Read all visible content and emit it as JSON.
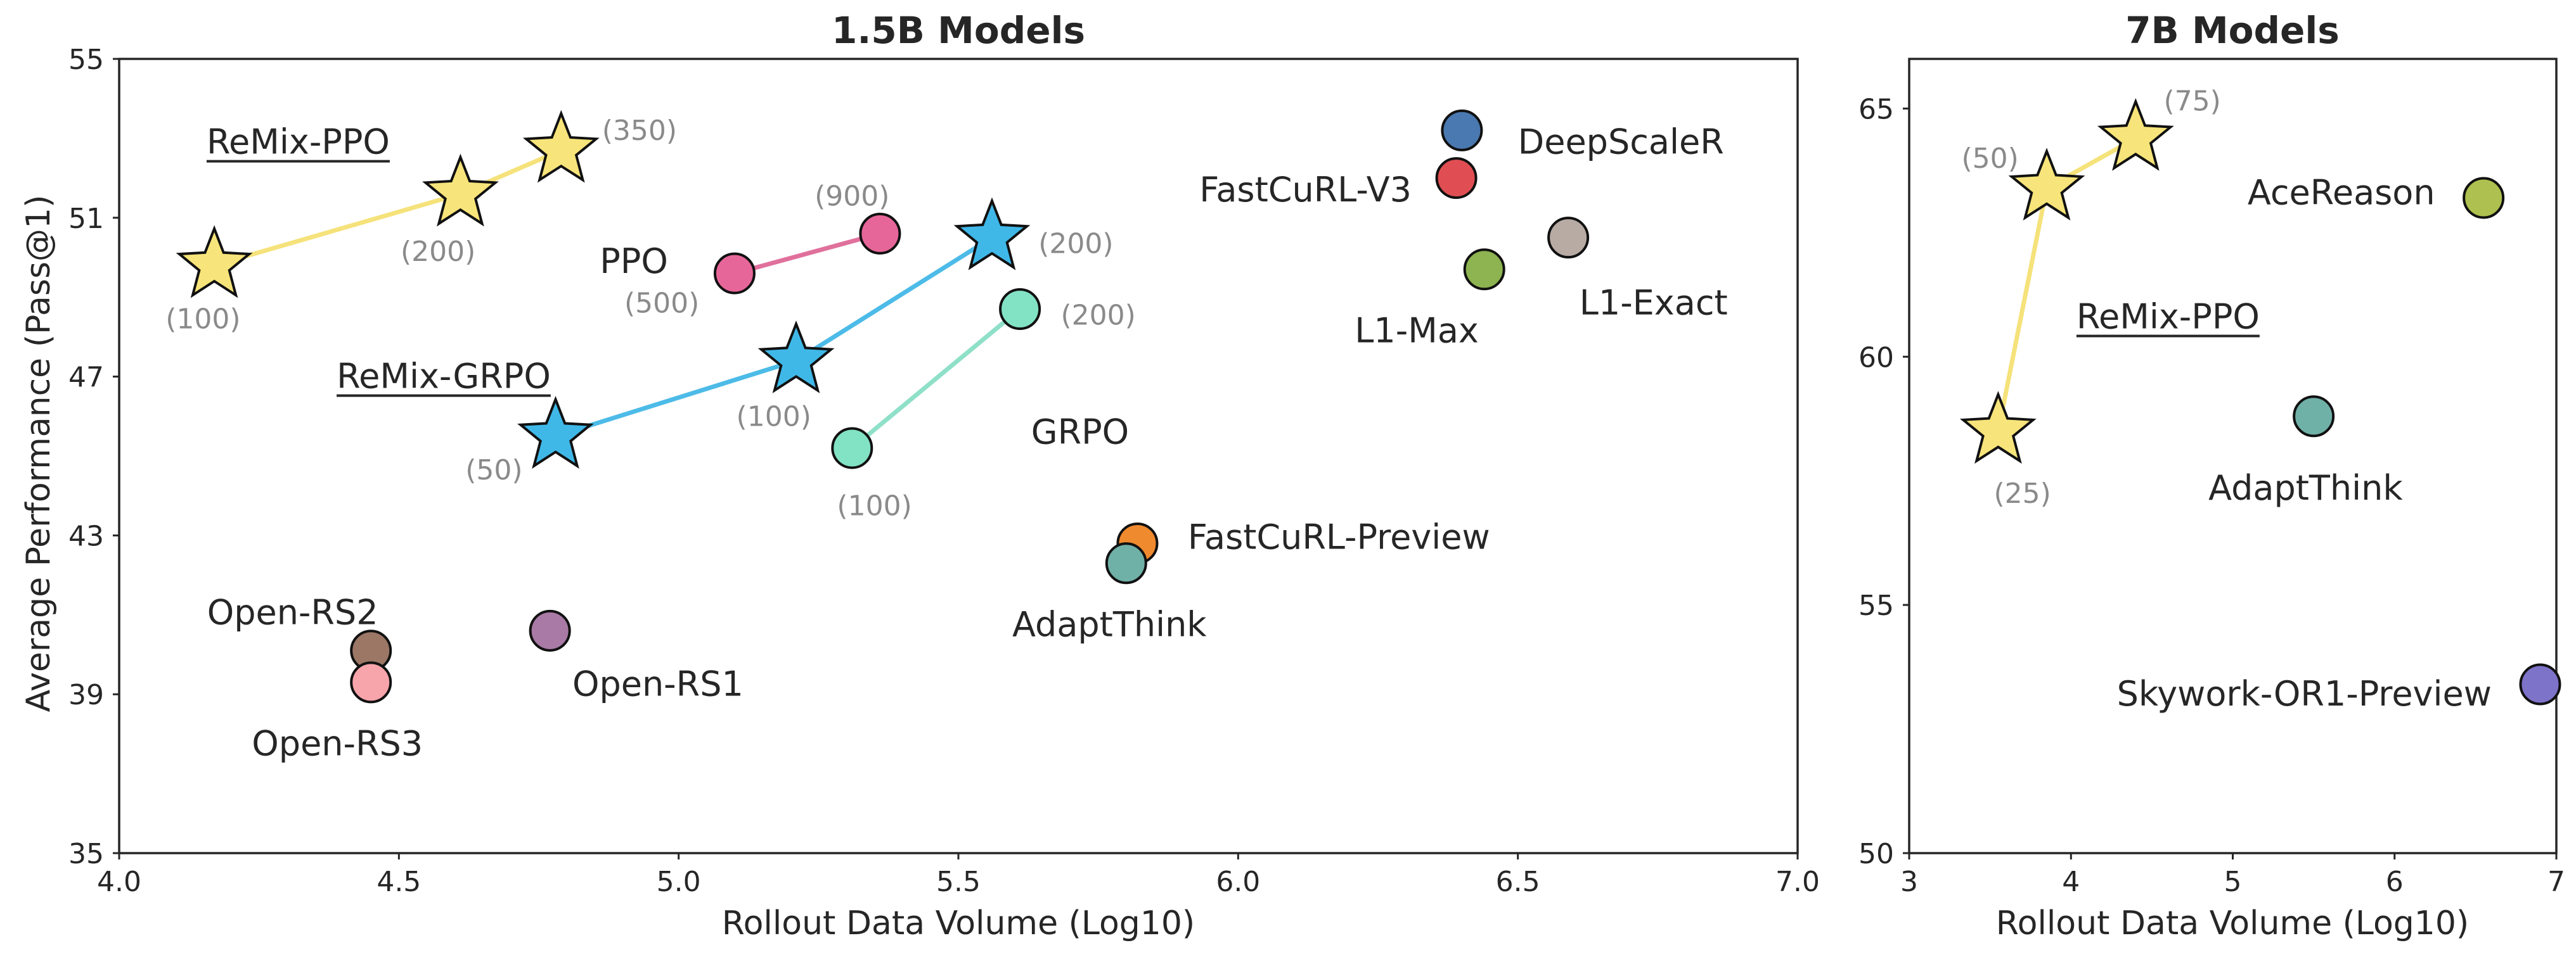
{
  "chart_data": [
    {
      "type": "scatter",
      "title": "1.5B Models",
      "xlabel": "Rollout Data Volume (Log10)",
      "ylabel": "Average Performance (Pass@1)",
      "xlim": [
        4.0,
        7.0
      ],
      "ylim": [
        35,
        55
      ],
      "xticks": [
        "4.0",
        "4.5",
        "5.0",
        "5.5",
        "6.0",
        "6.5",
        "7.0"
      ],
      "xtick_values": [
        4.0,
        4.5,
        5.0,
        5.5,
        6.0,
        6.5,
        7.0
      ],
      "yticks": [
        "35",
        "39",
        "43",
        "47",
        "51",
        "55"
      ],
      "ytick_values": [
        35,
        39,
        43,
        47,
        51,
        55
      ],
      "grid": false,
      "lines": [
        {
          "name": "ReMix-PPO",
          "color": "#f5e27a",
          "points": [
            [
              4.17,
              49.8
            ],
            [
              4.61,
              51.6
            ],
            [
              4.79,
              52.7
            ]
          ]
        },
        {
          "name": "PPO",
          "color": "#e0709c",
          "points": [
            [
              5.1,
              49.6
            ],
            [
              5.36,
              50.6
            ]
          ]
        },
        {
          "name": "ReMix-GRPO",
          "color": "#4dbbe8",
          "points": [
            [
              4.78,
              45.5
            ],
            [
              5.21,
              47.4
            ],
            [
              5.56,
              50.5
            ]
          ]
        },
        {
          "name": "GRPO",
          "color": "#8fe0c8",
          "points": [
            [
              5.31,
              45.2
            ],
            [
              5.61,
              48.7
            ]
          ]
        }
      ],
      "series_labels": [
        {
          "text": "ReMix-PPO",
          "x": 4.32,
          "y": 52.9,
          "underline": true,
          "anchor": "middle"
        },
        {
          "text": "ReMix-GRPO",
          "x": 4.58,
          "y": 47.0,
          "underline": true,
          "anchor": "middle"
        },
        {
          "text": "PPO",
          "x": 4.92,
          "y": 49.9,
          "underline": false,
          "anchor": "middle"
        },
        {
          "text": "GRPO",
          "x": 5.63,
          "y": 45.6,
          "underline": false,
          "anchor": "start"
        }
      ],
      "points": [
        {
          "name": "ReMix-PPO",
          "marker": "star",
          "color": "#f7e47a",
          "x": 4.17,
          "y": 49.8,
          "note": "(100)",
          "note_dx": -0.02,
          "note_dy": -1.35
        },
        {
          "name": "ReMix-PPO",
          "marker": "star",
          "color": "#f7e47a",
          "x": 4.61,
          "y": 51.6,
          "note": "(200)",
          "note_dx": -0.04,
          "note_dy": -1.45
        },
        {
          "name": "ReMix-PPO",
          "marker": "star",
          "color": "#f7e47a",
          "x": 4.79,
          "y": 52.7,
          "note": "(350)",
          "note_dx": 0.14,
          "note_dy": 0.5
        },
        {
          "name": "PPO",
          "marker": "circle",
          "color": "#e7669a",
          "x": 5.1,
          "y": 49.6,
          "note": "(500)",
          "note_dx": -0.13,
          "note_dy": -0.75
        },
        {
          "name": "PPO",
          "marker": "circle",
          "color": "#e7669a",
          "x": 5.36,
          "y": 50.6,
          "note": "(900)",
          "note_dx": -0.05,
          "note_dy": 0.95
        },
        {
          "name": "ReMix-GRPO",
          "marker": "star",
          "color": "#3fb8e8",
          "x": 4.78,
          "y": 45.5,
          "note": "(50)",
          "note_dx": -0.11,
          "note_dy": -0.85
        },
        {
          "name": "ReMix-GRPO",
          "marker": "star",
          "color": "#3fb8e8",
          "x": 5.21,
          "y": 47.4,
          "note": "(100)",
          "note_dx": -0.04,
          "note_dy": -1.4
        },
        {
          "name": "ReMix-GRPO",
          "marker": "star",
          "color": "#3fb8e8",
          "x": 5.56,
          "y": 50.5,
          "note": "(200)",
          "note_dx": 0.15,
          "note_dy": -0.15
        },
        {
          "name": "GRPO",
          "marker": "circle",
          "color": "#82e2c4",
          "x": 5.31,
          "y": 45.2,
          "note": "(100)",
          "note_dx": 0.04,
          "note_dy": -1.45
        },
        {
          "name": "GRPO",
          "marker": "circle",
          "color": "#82e2c4",
          "x": 5.61,
          "y": 48.7,
          "note": "(200)",
          "note_dx": 0.14,
          "note_dy": -0.15
        },
        {
          "name": "DeepScaleR",
          "marker": "circle",
          "color": "#4a78b0",
          "x": 6.4,
          "y": 53.2,
          "label": "DeepScaleR",
          "label_dx": 0.1,
          "label_dy": -0.3,
          "anchor": "start"
        },
        {
          "name": "FastCuRL-V3",
          "marker": "circle",
          "color": "#e04e53",
          "x": 6.39,
          "y": 52.0,
          "label": "FastCuRL-V3",
          "label_dx": -0.08,
          "label_dy": -0.3,
          "anchor": "end"
        },
        {
          "name": "L1-Max",
          "marker": "circle",
          "color": "#8db450",
          "x": 6.44,
          "y": 49.7,
          "label": "L1-Max",
          "label_dx": -0.01,
          "label_dy": -1.55,
          "anchor": "end"
        },
        {
          "name": "L1-Exact",
          "marker": "circle",
          "color": "#b8aba4",
          "x": 6.59,
          "y": 50.5,
          "label": "L1-Exact",
          "label_dx": 0.02,
          "label_dy": -1.65,
          "anchor": "start"
        },
        {
          "name": "FastCuRL-Preview",
          "marker": "circle",
          "color": "#f08a2e",
          "x": 5.82,
          "y": 42.8,
          "label": "FastCuRL-Preview",
          "label_dx": 0.09,
          "label_dy": 0.15,
          "anchor": "start"
        },
        {
          "name": "AdaptThink",
          "marker": "circle",
          "color": "#6fb0a7",
          "x": 5.8,
          "y": 42.3,
          "label": "AdaptThink",
          "label_dx": -0.03,
          "label_dy": -1.55,
          "anchor": "middle"
        },
        {
          "name": "Open-RS2",
          "marker": "circle",
          "color": "#9c7766",
          "x": 4.45,
          "y": 40.1,
          "label": "Open-RS2",
          "label_dx": -0.14,
          "label_dy": 0.95,
          "anchor": "middle"
        },
        {
          "name": "Open-RS3",
          "marker": "circle",
          "color": "#f7a4aa",
          "x": 4.45,
          "y": 39.3,
          "label": "Open-RS3",
          "label_dx": -0.06,
          "label_dy": -1.55,
          "anchor": "middle"
        },
        {
          "name": "Open-RS1",
          "marker": "circle",
          "color": "#a97aa6",
          "x": 4.77,
          "y": 40.6,
          "label": "Open-RS1",
          "label_dx": 0.04,
          "label_dy": -1.35,
          "anchor": "start"
        }
      ]
    },
    {
      "type": "scatter",
      "title": "7B Models",
      "xlabel": "Rollout Data Volume (Log10)",
      "ylabel": "",
      "xlim": [
        3,
        7
      ],
      "ylim": [
        50,
        66
      ],
      "xticks": [
        "3",
        "4",
        "5",
        "6",
        "7"
      ],
      "xtick_values": [
        3,
        4,
        5,
        6,
        7
      ],
      "yticks": [
        "50",
        "55",
        "60",
        "65"
      ],
      "ytick_values": [
        50,
        55,
        60,
        65
      ],
      "grid": false,
      "lines": [
        {
          "name": "ReMix-PPO",
          "color": "#f5e27a",
          "points": [
            [
              3.55,
              58.5
            ],
            [
              3.85,
              63.4
            ],
            [
              4.4,
              64.4
            ]
          ]
        }
      ],
      "series_labels": [
        {
          "text": "ReMix-PPO",
          "x": 4.6,
          "y": 60.8,
          "underline": true,
          "anchor": "middle"
        }
      ],
      "points": [
        {
          "name": "ReMix-PPO",
          "marker": "star",
          "color": "#f7e47a",
          "x": 3.55,
          "y": 58.5,
          "note": "(25)",
          "note_dx": 0.15,
          "note_dy": -1.25,
          "anchor": "middle"
        },
        {
          "name": "ReMix-PPO",
          "marker": "star",
          "color": "#f7e47a",
          "x": 3.85,
          "y": 63.4,
          "note": "(50)",
          "note_dx": -0.35,
          "note_dy": 0.6
        },
        {
          "name": "ReMix-PPO",
          "marker": "star",
          "color": "#f7e47a",
          "x": 4.4,
          "y": 64.4,
          "note": "(75)",
          "note_dx": 0.35,
          "note_dy": 0.75
        },
        {
          "name": "AceReason",
          "marker": "circle",
          "color": "#aec04f",
          "x": 6.55,
          "y": 63.2,
          "label": "AceReason",
          "label_dx": -0.3,
          "label_dy": 0.1,
          "anchor": "end"
        },
        {
          "name": "AdaptThink",
          "marker": "circle",
          "color": "#6fb0a7",
          "x": 5.5,
          "y": 58.8,
          "label": "AdaptThink",
          "label_dx": -0.05,
          "label_dy": -1.45,
          "anchor": "middle"
        },
        {
          "name": "Skywork-OR1-Preview",
          "marker": "circle",
          "color": "#7d73c8",
          "x": 6.9,
          "y": 53.4,
          "label": "Skywork-OR1-Preview",
          "label_dx": -0.3,
          "label_dy": -0.2,
          "anchor": "end"
        }
      ]
    }
  ]
}
